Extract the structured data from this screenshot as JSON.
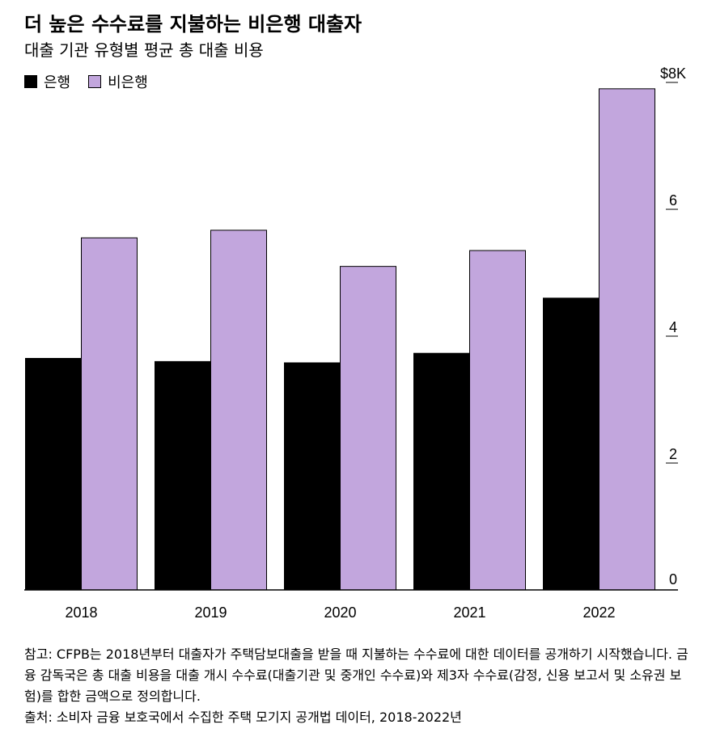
{
  "title": "더 높은 수수료를 지불하는 비은행 대출자",
  "subtitle": "대출 기관 유형별 평균 총 대출 비용",
  "colors": {
    "bank": "#000000",
    "nonbank": "#c2a6dd",
    "axis": "#000000",
    "text": "#000000"
  },
  "chart_data": {
    "type": "bar",
    "title": "더 높은 수수료를 지불하는 비은행 대출자",
    "subtitle": "대출 기관 유형별 평균 총 대출 비용",
    "categories": [
      "2018",
      "2019",
      "2020",
      "2021",
      "2022"
    ],
    "series": [
      {
        "name": "은행",
        "values": [
          3.65,
          3.6,
          3.58,
          3.73,
          4.6
        ]
      },
      {
        "name": "비은행",
        "values": [
          5.55,
          5.67,
          5.1,
          5.35,
          7.9
        ]
      }
    ],
    "xlabel": "",
    "ylabel": "",
    "ylim": [
      0,
      8
    ],
    "yticks": [
      0,
      2,
      4,
      6,
      8
    ],
    "ytick_labels": [
      "0",
      "2",
      "4",
      "6",
      "$8K"
    ],
    "y_axis_side": "right",
    "grid": false,
    "legend_position": "top-left"
  },
  "footnote": {
    "note": "참고: CFPB는 2018년부터 대출자가 주택담보대출을 받을 때 지불하는 수수료에 대한 데이터를 공개하기 시작했습니다. 금융 감독국은 총 대출 비용을 대출 개시 수수료(대출기관 및 중개인 수수료)와 제3자 수수료(감정, 신용 보고서 및 소유권 보험)를 합한 금액으로 정의합니다.",
    "source": "출처: 소비자 금융 보호국에서 수집한 주택 모기지 공개법 데이터, 2018-2022년"
  }
}
